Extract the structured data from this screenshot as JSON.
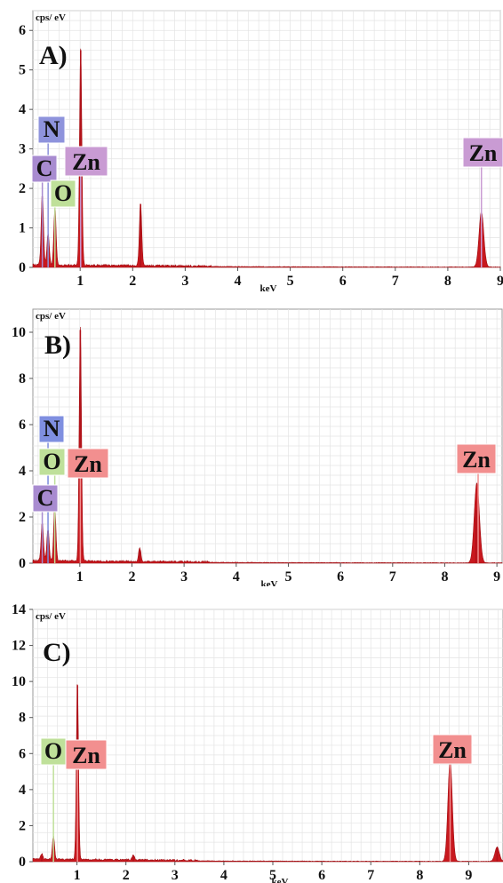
{
  "chart_data": [
    {
      "type": "area",
      "panel_label": "A)",
      "unit_label": "cps/ eV",
      "xlabel": "keV",
      "ylim": [
        0,
        6.5
      ],
      "xlim": [
        0.1,
        9
      ],
      "yticks": [
        "0",
        "1",
        "2",
        "3",
        "4",
        "5",
        "6"
      ],
      "xticks": [
        "1",
        "2",
        "3",
        "4",
        "5",
        "6",
        "7",
        "8",
        "9"
      ],
      "grid": true,
      "peaks": [
        {
          "x": 0.28,
          "y": 1.8
        },
        {
          "x": 0.39,
          "y": 0.8
        },
        {
          "x": 0.52,
          "y": 1.45
        },
        {
          "x": 1.01,
          "y": 5.5
        },
        {
          "x": 2.15,
          "y": 1.6
        },
        {
          "x": 8.64,
          "y": 1.4
        }
      ],
      "element_labels": [
        {
          "text": "N",
          "energy": 0.39,
          "color": "#8e93dc"
        },
        {
          "text": "C",
          "energy": 0.28,
          "color": "#a88bd0"
        },
        {
          "text": "O",
          "energy": 0.52,
          "color": "#bfe09a"
        },
        {
          "text": "Zn",
          "energy": 1.01,
          "color": "#c99bd3"
        },
        {
          "text": "Zn",
          "energy": 8.64,
          "color": "#c99bd3"
        }
      ]
    },
    {
      "type": "area",
      "panel_label": "B)",
      "unit_label": "cps/ eV",
      "xlabel": "keV",
      "ylim": [
        0,
        11
      ],
      "xlim": [
        0.1,
        9.1
      ],
      "yticks": [
        "0",
        "2",
        "4",
        "6",
        "8",
        "10"
      ],
      "xticks": [
        "1",
        "2",
        "3",
        "4",
        "5",
        "6",
        "7",
        "8",
        "9"
      ],
      "grid": true,
      "peaks": [
        {
          "x": 0.28,
          "y": 1.7
        },
        {
          "x": 0.39,
          "y": 1.4
        },
        {
          "x": 0.52,
          "y": 2.3
        },
        {
          "x": 1.01,
          "y": 10.1
        },
        {
          "x": 2.15,
          "y": 0.6
        },
        {
          "x": 8.6,
          "y": 2.3
        },
        {
          "x": 8.64,
          "y": 1.5
        }
      ],
      "element_labels": [
        {
          "text": "N",
          "energy": 0.39,
          "color": "#7f8fe0"
        },
        {
          "text": "O",
          "energy": 0.52,
          "color": "#bfe09a"
        },
        {
          "text": "Zn",
          "energy": 1.01,
          "color": "#f28f8f"
        },
        {
          "text": "C",
          "energy": 0.28,
          "color": "#a88bd0"
        },
        {
          "text": "Zn",
          "energy": 8.64,
          "color": "#f28f8f"
        }
      ]
    },
    {
      "type": "area",
      "panel_label": "C)",
      "unit_label": "cps/ eV",
      "xlabel": "keV",
      "ylim": [
        0,
        14
      ],
      "xlim": [
        0.1,
        9.7
      ],
      "yticks": [
        "0",
        "2",
        "4",
        "6",
        "8",
        "10",
        "12",
        "14"
      ],
      "xticks": [
        "1",
        "2",
        "3",
        "4",
        "5",
        "6",
        "7",
        "8",
        "9"
      ],
      "grid": true,
      "peaks": [
        {
          "x": 0.28,
          "y": 0.3
        },
        {
          "x": 0.52,
          "y": 1.3
        },
        {
          "x": 1.01,
          "y": 9.8
        },
        {
          "x": 2.15,
          "y": 0.3
        },
        {
          "x": 8.62,
          "y": 5.6
        },
        {
          "x": 9.58,
          "y": 0.8
        }
      ],
      "element_labels": [
        {
          "text": "O",
          "energy": 0.52,
          "color": "#bfe09a"
        },
        {
          "text": "Zn",
          "energy": 1.01,
          "color": "#f28f8f"
        },
        {
          "text": "Zn",
          "energy": 8.62,
          "color": "#f28f8f"
        }
      ]
    }
  ]
}
